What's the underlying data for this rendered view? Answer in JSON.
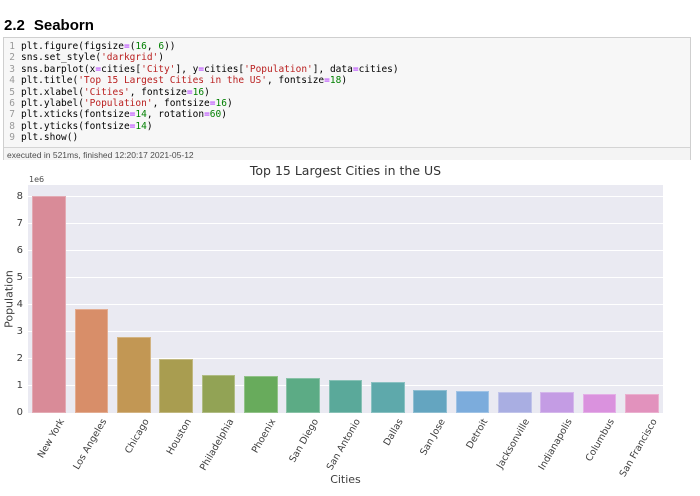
{
  "page": {
    "heading_number": "2.2",
    "heading_title": "Seaborn"
  },
  "code_cell": {
    "language": "python",
    "exec_info": "executed in 521ms, finished 12:20:17 2021-05-12",
    "syntax_colors": {
      "plain": "#000000",
      "operator": "#AA22FF",
      "number": "#008000",
      "string": "#BA2121",
      "line_number": "#999999"
    },
    "lines": [
      {
        "num": "1",
        "tokens": [
          [
            "plt.figure(figsize",
            "p"
          ],
          [
            "=",
            "o"
          ],
          [
            "(",
            "p"
          ],
          [
            "16",
            "n"
          ],
          [
            ", ",
            "p"
          ],
          [
            "6",
            "n"
          ],
          [
            "))",
            "p"
          ]
        ]
      },
      {
        "num": "2",
        "tokens": [
          [
            "sns.set_style(",
            "p"
          ],
          [
            "'darkgrid'",
            "s"
          ],
          [
            ")",
            "p"
          ]
        ]
      },
      {
        "num": "3",
        "tokens": [
          [
            "sns.barplot(x",
            "p"
          ],
          [
            "=",
            "o"
          ],
          [
            "cities[",
            "p"
          ],
          [
            "'City'",
            "s"
          ],
          [
            "], y",
            "p"
          ],
          [
            "=",
            "o"
          ],
          [
            "cities[",
            "p"
          ],
          [
            "'Population'",
            "s"
          ],
          [
            "], data",
            "p"
          ],
          [
            "=",
            "o"
          ],
          [
            "cities)",
            "p"
          ]
        ]
      },
      {
        "num": "4",
        "tokens": [
          [
            "plt.title(",
            "p"
          ],
          [
            "'Top 15 Largest Cities in the US'",
            "s"
          ],
          [
            ", fontsize",
            "p"
          ],
          [
            "=",
            "o"
          ],
          [
            "18",
            "n"
          ],
          [
            ")",
            "p"
          ]
        ]
      },
      {
        "num": "5",
        "tokens": [
          [
            "plt.xlabel(",
            "p"
          ],
          [
            "'Cities'",
            "s"
          ],
          [
            ", fontsize",
            "p"
          ],
          [
            "=",
            "o"
          ],
          [
            "16",
            "n"
          ],
          [
            ")",
            "p"
          ]
        ]
      },
      {
        "num": "6",
        "tokens": [
          [
            "plt.ylabel(",
            "p"
          ],
          [
            "'Population'",
            "s"
          ],
          [
            ", fontsize",
            "p"
          ],
          [
            "=",
            "o"
          ],
          [
            "16",
            "n"
          ],
          [
            ")",
            "p"
          ]
        ]
      },
      {
        "num": "7",
        "tokens": [
          [
            "plt.xticks(fontsize",
            "p"
          ],
          [
            "=",
            "o"
          ],
          [
            "14",
            "n"
          ],
          [
            ", rotation",
            "p"
          ],
          [
            "=",
            "o"
          ],
          [
            "60",
            "n"
          ],
          [
            ")",
            "p"
          ]
        ]
      },
      {
        "num": "8",
        "tokens": [
          [
            "plt.yticks(fontsize",
            "p"
          ],
          [
            "=",
            "o"
          ],
          [
            "14",
            "n"
          ],
          [
            ")",
            "p"
          ]
        ]
      },
      {
        "num": "9",
        "tokens": [
          [
            "plt.show()",
            "p"
          ]
        ]
      }
    ]
  },
  "chart_data": {
    "type": "bar",
    "title": "Top 15 Largest Cities in the US",
    "xlabel": "Cities",
    "ylabel": "Population",
    "y_offset_label": "1e6",
    "categories": [
      "New York",
      "Los Angeles",
      "Chicago",
      "Houston",
      "Philadelphia",
      "Phoenix",
      "San Diego",
      "San Antonio",
      "Dallas",
      "San Jose",
      "Detroit",
      "Jacksonville",
      "Indianapolis",
      "Columbus",
      "San Francisco"
    ],
    "values_millions": [
      8.05,
      3.85,
      2.8,
      2.0,
      1.42,
      1.38,
      1.28,
      1.22,
      1.16,
      0.86,
      0.82,
      0.77,
      0.76,
      0.71,
      0.7
    ],
    "bar_colors": [
      "#d98b98",
      "#d88e69",
      "#c29754",
      "#a99d50",
      "#92a355",
      "#68ab5c",
      "#5cab85",
      "#5aa99a",
      "#5ea9ab",
      "#64a5c0",
      "#7cacdc",
      "#a9aee2",
      "#c49ce4",
      "#da92de",
      "#e292bd"
    ],
    "yticks": [
      0,
      1,
      2,
      3,
      4,
      5,
      6,
      7,
      8
    ],
    "ylim": [
      0,
      8.44
    ],
    "xtick_rotation_deg": 60,
    "grid": "horizontal",
    "grid_color": "#ffffff",
    "plot_background": "#eaeaf2",
    "legend": false,
    "tick_label_color": "#3d3d3d",
    "title_color": "#333333"
  }
}
